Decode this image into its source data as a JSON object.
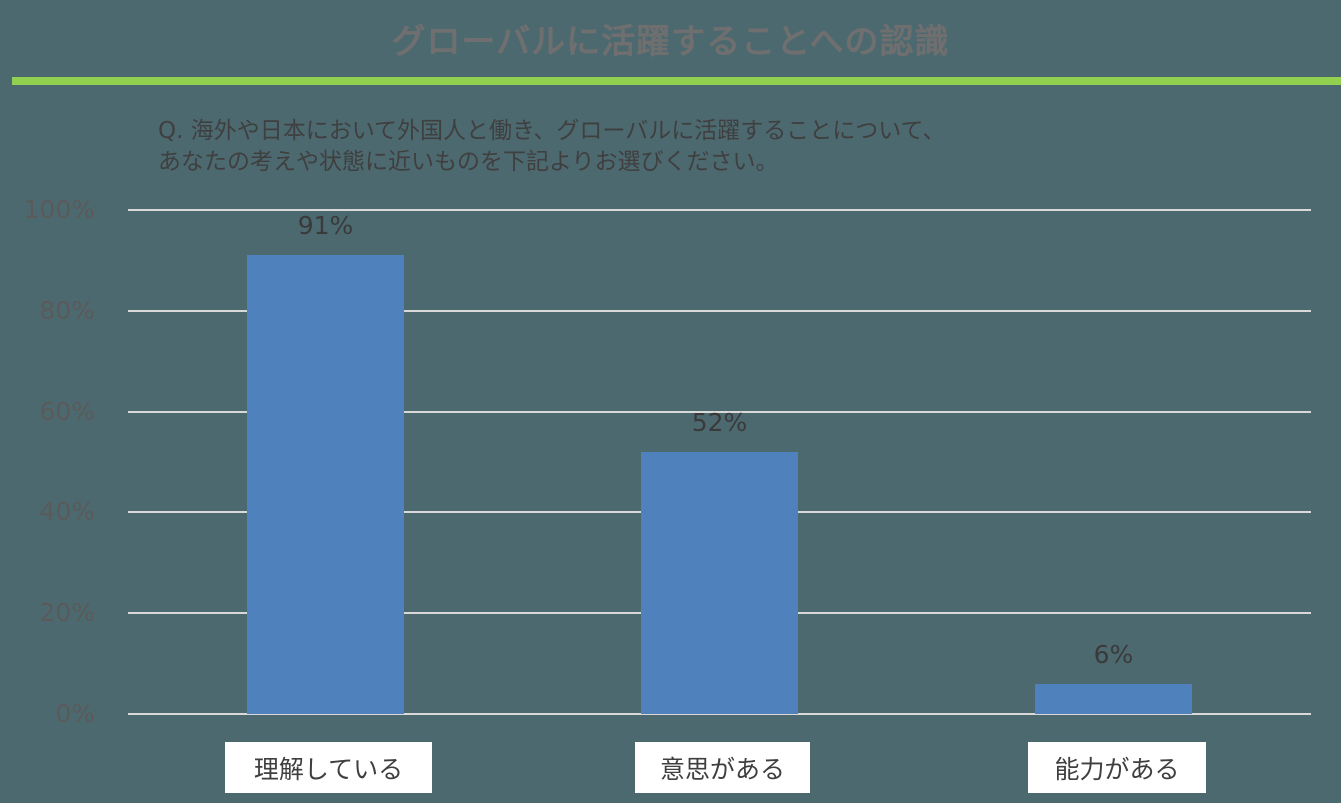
{
  "title": "グローバルに活躍することへの認識",
  "question": {
    "line1": "Q. 海外や日本において外国人と働き、グローバルに活躍することについて、",
    "line2": "あなたの考えや状態に近いものを下記よりお選びください。"
  },
  "colors": {
    "background": "#4d6970",
    "accent_rule": "#92d050",
    "bar": "#4f81bd",
    "gridline": "#d9d9d9"
  },
  "chart_data": {
    "type": "bar",
    "title": "グローバルに活躍することへの認識",
    "subtitle": "Q. 海外や日本において外国人と働き、グローバルに活躍することについて、あなたの考えや状態に近いものを下記よりお選びください。",
    "categories": [
      "理解している",
      "意思がある",
      "能力がある"
    ],
    "values": [
      91,
      52,
      6
    ],
    "value_labels": [
      "91%",
      "52%",
      "6%"
    ],
    "xlabel": "",
    "ylabel": "",
    "ylim": [
      0,
      100
    ],
    "yticks": [
      "0%",
      "20%",
      "40%",
      "60%",
      "80%",
      "100%"
    ],
    "grid": true,
    "legend": "none"
  }
}
